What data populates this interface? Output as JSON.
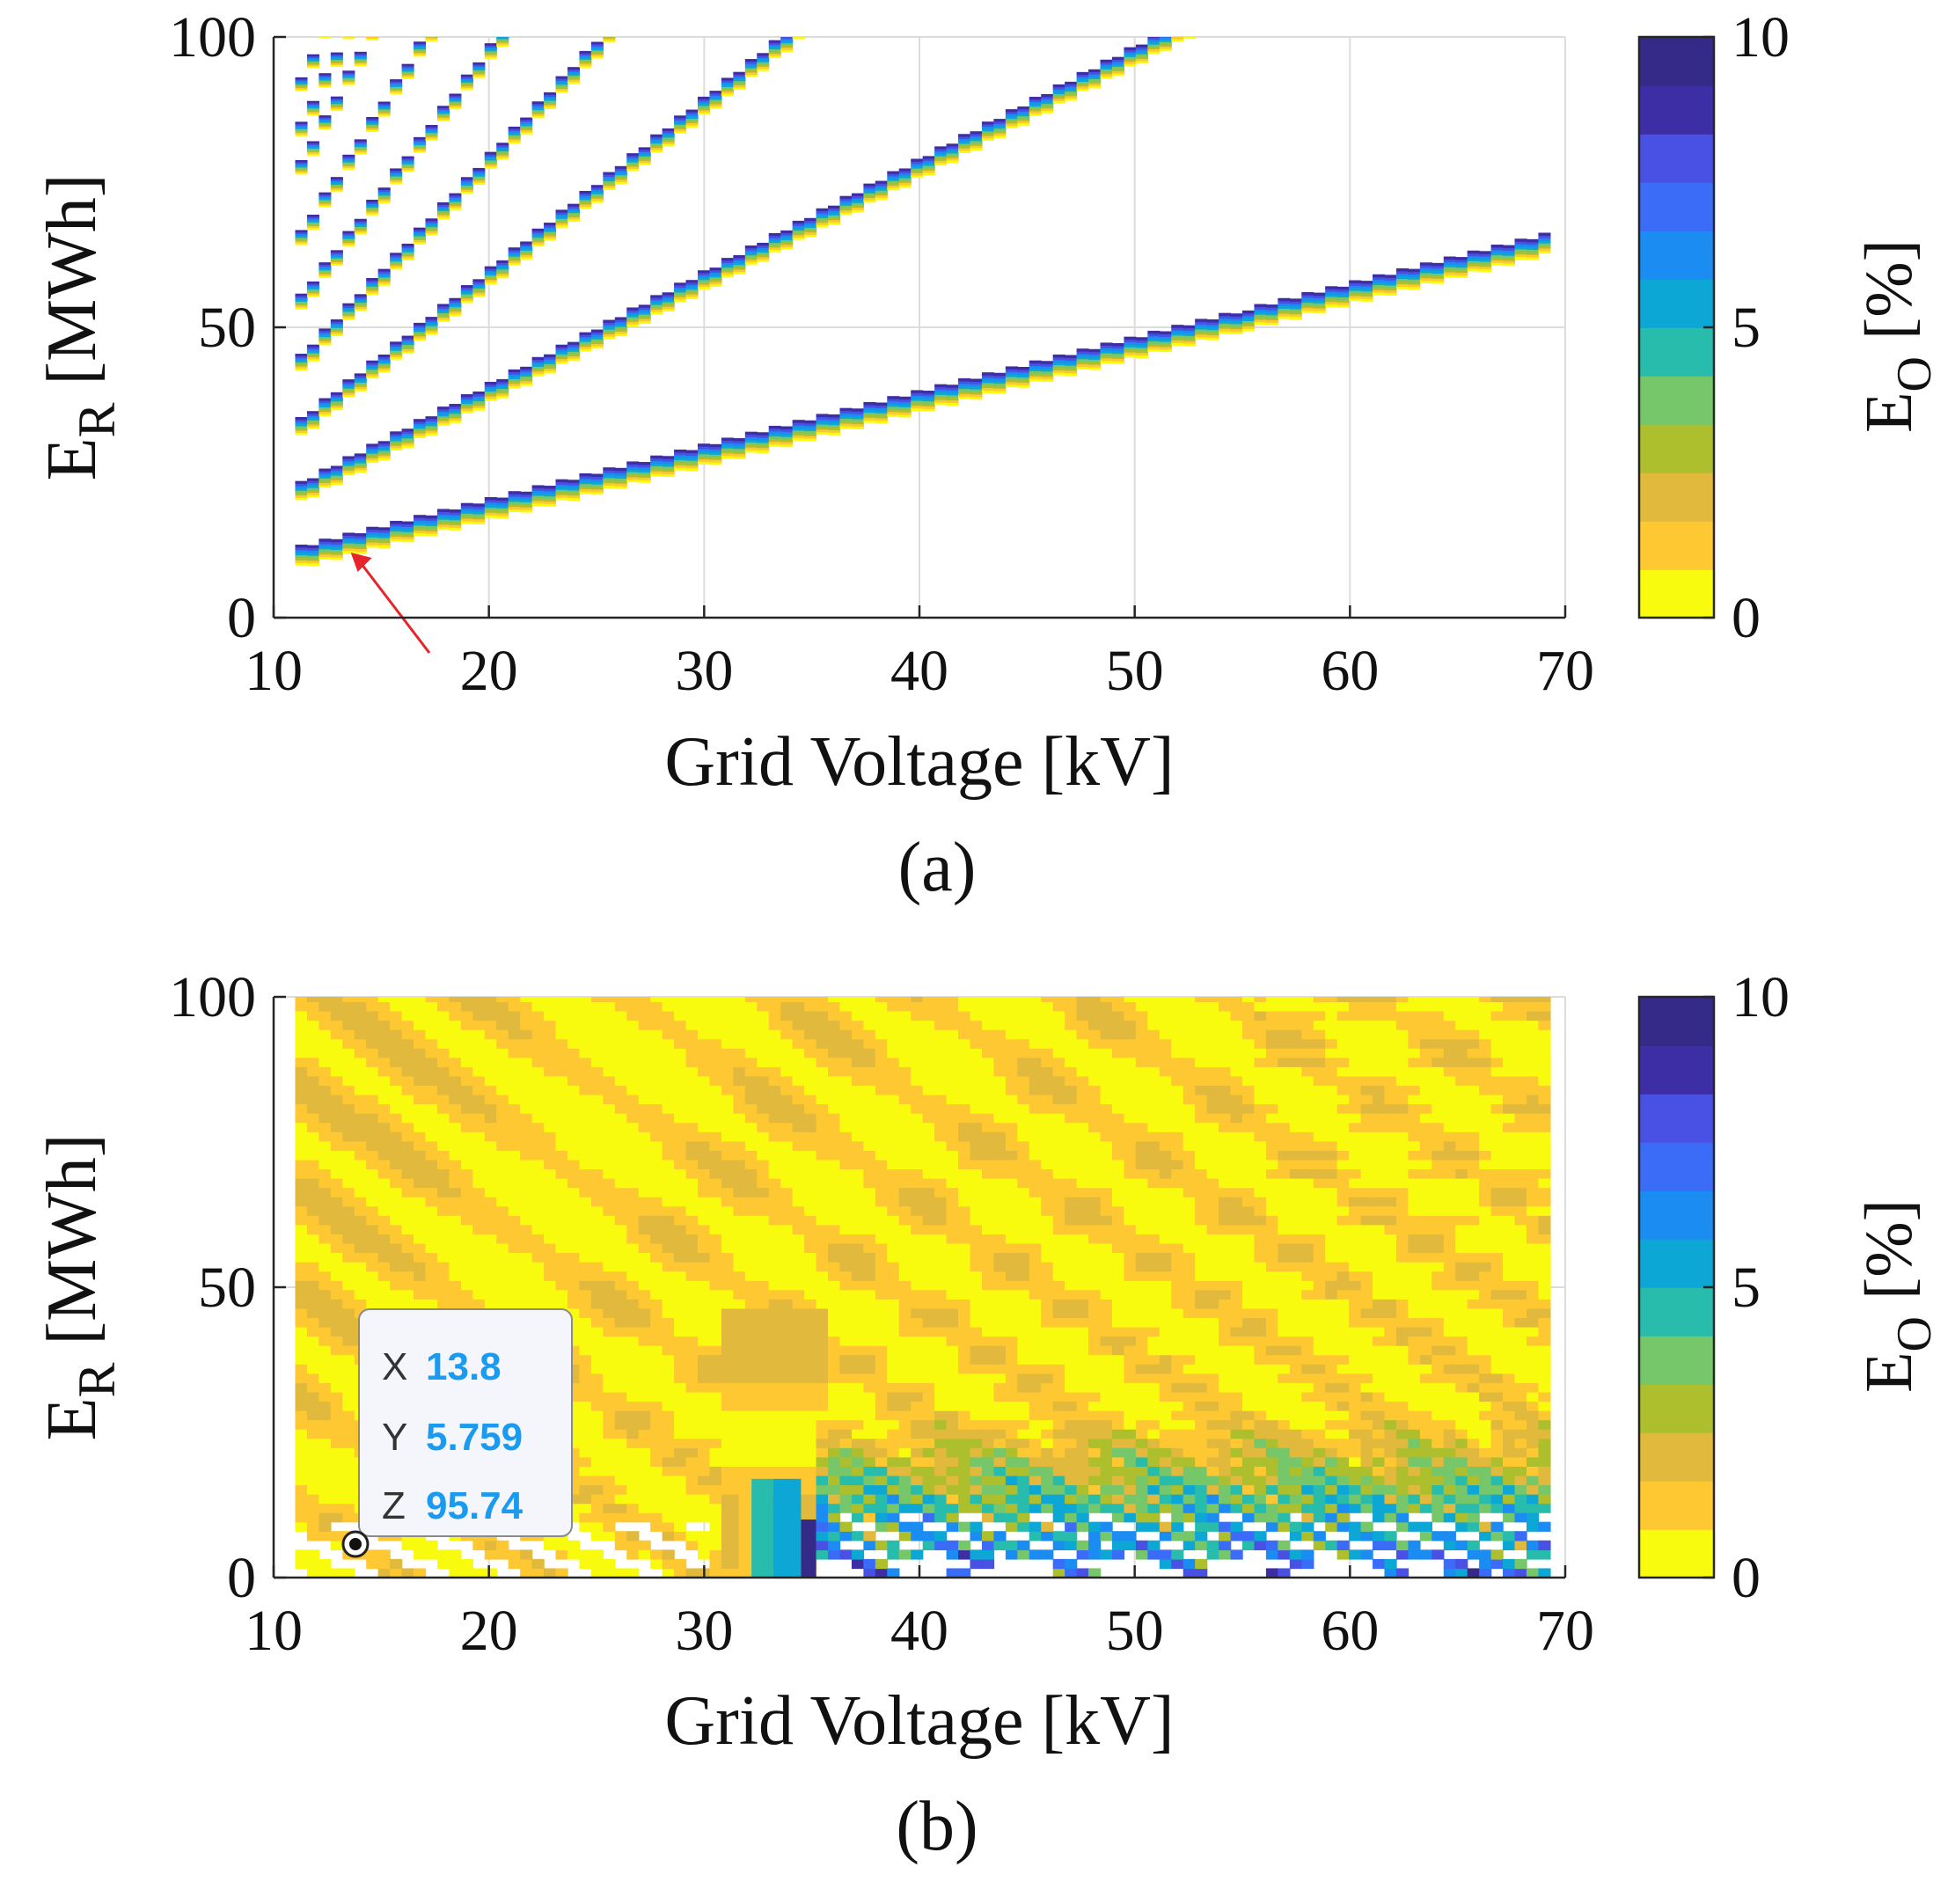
{
  "colormap": [
    "#f9fb0e",
    "#fec832",
    "#e1b93c",
    "#aebf2d",
    "#76c66a",
    "#28bcad",
    "#0da7d5",
    "#1b8cf1",
    "#3a6cf8",
    "#4851e4",
    "#3e2ea6",
    "#352a87"
  ],
  "chart_data": [
    {
      "type": "heatmap",
      "panel_label": "(a)",
      "xlabel": "Grid Voltage [kV]",
      "ylabel": "E_R [MWh]",
      "ylabel_main": "E",
      "ylabel_sub": "R",
      "ylabel_rest": " [MWh]",
      "xlim": [
        10,
        70
      ],
      "ylim": [
        0,
        100
      ],
      "xticks": [
        10,
        20,
        30,
        40,
        50,
        60,
        70
      ],
      "yticks": [
        0,
        50,
        100
      ],
      "grid": true,
      "colorbar": {
        "label": "E_O [%]",
        "label_main": "E",
        "label_sub": "O",
        "label_rest": " [%]",
        "range": [
          0,
          10
        ],
        "ticks": [
          0,
          5,
          10
        ]
      },
      "annotation": {
        "type": "arrow",
        "color": "#e8242b",
        "points_to": [
          13.5,
          10
        ]
      },
      "bands": [
        {
          "ratio": 0.93,
          "width": 3.5
        },
        {
          "ratio": 1.94,
          "width": 3.2
        },
        {
          "ratio": 2.95,
          "width": 3.0
        },
        {
          "ratio": 3.95,
          "width": 2.8
        },
        {
          "ratio": 4.9,
          "width": 2.6
        },
        {
          "ratio": 5.9,
          "width": 2.5
        },
        {
          "ratio": 7.0,
          "width": 2.4
        },
        {
          "ratio": 7.6,
          "width": 2.4
        },
        {
          "ratio": 8.3,
          "width": 2.3
        }
      ],
      "x_start": 11,
      "x_end": 69
    },
    {
      "type": "heatmap",
      "panel_label": "(b)",
      "xlabel": "Grid Voltage [kV]",
      "ylabel": "E_R [MWh]",
      "ylabel_main": "E",
      "ylabel_sub": "R",
      "ylabel_rest": " [MWh]",
      "xlim": [
        10,
        70
      ],
      "ylim": [
        0,
        100
      ],
      "xticks": [
        10,
        20,
        30,
        40,
        50,
        60,
        70
      ],
      "yticks": [
        0,
        50,
        100
      ],
      "grid": true,
      "colorbar": {
        "label": "E_O [%]",
        "label_main": "E",
        "label_sub": "O",
        "label_rest": " [%]",
        "range": [
          0,
          10
        ],
        "ticks": [
          0,
          5,
          10
        ]
      },
      "x_start": 11,
      "x_end": 69,
      "datatip": {
        "x_label": "X",
        "x": "13.8",
        "y_label": "Y",
        "y": "5.759",
        "z_label": "Z",
        "z": "95.74",
        "point": [
          13.8,
          5.759
        ]
      }
    }
  ]
}
